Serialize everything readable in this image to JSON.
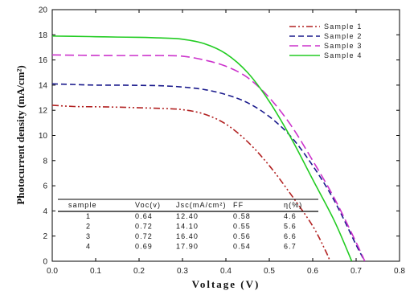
{
  "chart_data": {
    "type": "line",
    "xlabel": "Voltage (V)",
    "ylabel": "Photocurrent density (mA/cm²)",
    "xlim": [
      0,
      0.8
    ],
    "ylim": [
      0,
      20
    ],
    "x_ticks": [
      "0.0",
      "0.1",
      "0.2",
      "0.3",
      "0.4",
      "0.5",
      "0.6",
      "0.7",
      "0.8"
    ],
    "y_ticks": [
      "0",
      "2",
      "4",
      "6",
      "8",
      "10",
      "12",
      "14",
      "16",
      "18",
      "20"
    ],
    "grid": false,
    "legend_position": "top-right",
    "series": [
      {
        "name": "Sample 1",
        "color": "#b22222",
        "style": "dash-dot-dot",
        "points": [
          [
            0,
            12.4
          ],
          [
            0.05,
            12.3
          ],
          [
            0.1,
            12.28
          ],
          [
            0.15,
            12.25
          ],
          [
            0.2,
            12.2
          ],
          [
            0.25,
            12.15
          ],
          [
            0.3,
            12.05
          ],
          [
            0.35,
            11.7
          ],
          [
            0.4,
            10.9
          ],
          [
            0.45,
            9.5
          ],
          [
            0.5,
            7.6
          ],
          [
            0.55,
            5.3
          ],
          [
            0.6,
            2.8
          ],
          [
            0.63,
            0.8
          ],
          [
            0.64,
            0
          ]
        ]
      },
      {
        "name": "Sample 2",
        "color": "#1a1a8c",
        "style": "dash",
        "points": [
          [
            0,
            14.1
          ],
          [
            0.05,
            14.05
          ],
          [
            0.1,
            14.0
          ],
          [
            0.15,
            14.0
          ],
          [
            0.2,
            13.98
          ],
          [
            0.25,
            13.95
          ],
          [
            0.3,
            13.85
          ],
          [
            0.35,
            13.65
          ],
          [
            0.4,
            13.25
          ],
          [
            0.45,
            12.6
          ],
          [
            0.5,
            11.5
          ],
          [
            0.55,
            9.9
          ],
          [
            0.6,
            7.6
          ],
          [
            0.65,
            4.8
          ],
          [
            0.7,
            1.3
          ],
          [
            0.72,
            0
          ]
        ]
      },
      {
        "name": "Sample 3",
        "color": "#cc33cc",
        "style": "long-dash",
        "points": [
          [
            0,
            16.4
          ],
          [
            0.05,
            16.38
          ],
          [
            0.1,
            16.36
          ],
          [
            0.15,
            16.35
          ],
          [
            0.2,
            16.35
          ],
          [
            0.25,
            16.35
          ],
          [
            0.3,
            16.3
          ],
          [
            0.35,
            16.0
          ],
          [
            0.4,
            15.5
          ],
          [
            0.45,
            14.6
          ],
          [
            0.5,
            13.0
          ],
          [
            0.55,
            10.8
          ],
          [
            0.6,
            8.0
          ],
          [
            0.65,
            5.0
          ],
          [
            0.7,
            1.5
          ],
          [
            0.72,
            0
          ]
        ]
      },
      {
        "name": "Sample 4",
        "color": "#22cc22",
        "style": "solid",
        "points": [
          [
            0,
            17.9
          ],
          [
            0.05,
            17.88
          ],
          [
            0.1,
            17.85
          ],
          [
            0.15,
            17.82
          ],
          [
            0.2,
            17.8
          ],
          [
            0.25,
            17.75
          ],
          [
            0.3,
            17.65
          ],
          [
            0.35,
            17.3
          ],
          [
            0.4,
            16.5
          ],
          [
            0.45,
            15.0
          ],
          [
            0.5,
            12.7
          ],
          [
            0.55,
            9.8
          ],
          [
            0.6,
            6.5
          ],
          [
            0.65,
            3.2
          ],
          [
            0.69,
            0
          ]
        ]
      }
    ],
    "table": {
      "headers": [
        "sample",
        "Voc(v)",
        "Jsc(mA/cm²)",
        "FF",
        "η(%)"
      ],
      "rows": [
        [
          "1",
          "0.64",
          "12.40",
          "0.58",
          "4.6"
        ],
        [
          "2",
          "0.72",
          "14.10",
          "0.55",
          "5.6"
        ],
        [
          "3",
          "0.72",
          "16.40",
          "0.56",
          "6.6"
        ],
        [
          "4",
          "0.69",
          "17.90",
          "0.54",
          "6.7"
        ]
      ]
    }
  }
}
